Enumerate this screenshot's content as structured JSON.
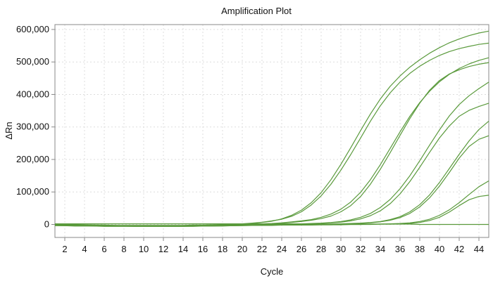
{
  "chart_data": {
    "type": "line",
    "title": "Amplification Plot",
    "xlabel": "Cycle",
    "ylabel": "ΔRn",
    "xlim": [
      1,
      45
    ],
    "ylim": [
      -40000,
      615000
    ],
    "x_ticks": [
      2,
      4,
      6,
      8,
      10,
      12,
      14,
      16,
      18,
      20,
      22,
      24,
      26,
      28,
      30,
      32,
      34,
      36,
      38,
      40,
      42,
      44
    ],
    "x_tick_labels": [
      "2",
      "4",
      "6",
      "8",
      "10",
      "12",
      "14",
      "16",
      "18",
      "20",
      "22",
      "24",
      "26",
      "28",
      "30",
      "32",
      "34",
      "36",
      "38",
      "40",
      "42",
      "44"
    ],
    "y_ticks": [
      0,
      100000,
      200000,
      300000,
      400000,
      500000,
      600000
    ],
    "y_tick_labels": [
      "0",
      "100,000",
      "200,000",
      "300,000",
      "400,000",
      "500,000",
      "600,000"
    ],
    "grid": true,
    "legend": "none",
    "line_color": "#5a9a3c",
    "grid_color": "#dddddd",
    "axis_color": "#888888",
    "x": [
      1,
      2,
      3,
      4,
      5,
      6,
      7,
      8,
      9,
      10,
      11,
      12,
      13,
      14,
      15,
      16,
      17,
      18,
      19,
      20,
      21,
      22,
      23,
      24,
      25,
      26,
      27,
      28,
      29,
      30,
      31,
      32,
      33,
      34,
      35,
      36,
      37,
      38,
      39,
      40,
      41,
      42,
      43,
      44,
      45
    ],
    "series": [
      {
        "values": [
          2000,
          1000,
          0,
          -1000,
          -2000,
          -3000,
          -3000,
          -4000,
          -4000,
          -4000,
          -4000,
          -4000,
          -4000,
          -4000,
          -3000,
          -3000,
          -2000,
          -1000,
          0,
          1000,
          3000,
          6000,
          10000,
          17000,
          28000,
          44000,
          67000,
          98000,
          138000,
          185000,
          236000,
          289000,
          340000,
          386000,
          425000,
          457000,
          484000,
          507000,
          527000,
          544000,
          559000,
          571000,
          581000,
          589000,
          595000
        ]
      },
      {
        "values": [
          1000,
          0,
          -1000,
          -1000,
          -2000,
          -2000,
          -3000,
          -3000,
          -3000,
          -3000,
          -3000,
          -3000,
          -3000,
          -3000,
          -2000,
          -2000,
          -1000,
          0,
          1000,
          2000,
          4000,
          7000,
          11000,
          16000,
          25000,
          39000,
          60000,
          88000,
          124000,
          167000,
          215000,
          266000,
          318000,
          365000,
          405000,
          438000,
          465000,
          487000,
          505000,
          520000,
          532000,
          541000,
          548000,
          554000,
          558000
        ]
      },
      {
        "values": [
          -1000,
          -2000,
          -2000,
          -3000,
          -3000,
          -3000,
          -4000,
          -4000,
          -4000,
          -4000,
          -4000,
          -4000,
          -4000,
          -4000,
          -4000,
          -3000,
          -3000,
          -2000,
          -1000,
          0,
          1000,
          2000,
          3000,
          5000,
          8000,
          11000,
          15000,
          22000,
          32000,
          47000,
          69000,
          99000,
          138000,
          184000,
          234000,
          285000,
          333000,
          375000,
          410000,
          439000,
          462000,
          480000,
          494000,
          505000,
          513000
        ]
      },
      {
        "values": [
          -2000,
          -3000,
          -3000,
          -4000,
          -4000,
          -4000,
          -5000,
          -5000,
          -5000,
          -5000,
          -5000,
          -5000,
          -5000,
          -5000,
          -5000,
          -4000,
          -4000,
          -3000,
          -2000,
          -1000,
          0,
          1000,
          2000,
          4000,
          6000,
          9000,
          13000,
          18000,
          26000,
          39000,
          58000,
          86000,
          124000,
          170000,
          221000,
          274000,
          326000,
          373000,
          413000,
          443000,
          463000,
          476000,
          486000,
          493000,
          498000
        ]
      },
      {
        "values": [
          -2000,
          -2000,
          -3000,
          -3000,
          -3000,
          -4000,
          -4000,
          -4000,
          -4000,
          -4000,
          -4000,
          -4000,
          -4000,
          -4000,
          -4000,
          -3000,
          -3000,
          -3000,
          -2000,
          -2000,
          -1000,
          -1000,
          0,
          0,
          1000,
          2000,
          3000,
          4000,
          6000,
          9000,
          14000,
          22000,
          34000,
          52000,
          77000,
          110000,
          150000,
          196000,
          244000,
          291000,
          334000,
          369000,
          396000,
          418000,
          438000
        ]
      },
      {
        "values": [
          -3000,
          -3000,
          -4000,
          -4000,
          -4000,
          -5000,
          -5000,
          -5000,
          -5000,
          -5000,
          -5000,
          -5000,
          -5000,
          -5000,
          -5000,
          -4000,
          -4000,
          -4000,
          -3000,
          -3000,
          -2000,
          -2000,
          -1000,
          -1000,
          0,
          1000,
          2000,
          3000,
          5000,
          7000,
          11000,
          17000,
          27000,
          42000,
          64000,
          94000,
          132000,
          176000,
          222000,
          266000,
          303000,
          333000,
          351000,
          363000,
          373000
        ]
      },
      {
        "values": [
          -3000,
          -4000,
          -4000,
          -4000,
          -5000,
          -5000,
          -5000,
          -5000,
          -6000,
          -6000,
          -6000,
          -6000,
          -6000,
          -6000,
          -5000,
          -5000,
          -5000,
          -4000,
          -4000,
          -3000,
          -3000,
          -2000,
          -2000,
          -1000,
          -1000,
          0,
          0,
          1000,
          1000,
          2000,
          3000,
          4000,
          6000,
          9000,
          15000,
          24000,
          39000,
          61000,
          91000,
          129000,
          172000,
          216000,
          257000,
          292000,
          318000
        ]
      },
      {
        "values": [
          -4000,
          -4000,
          -5000,
          -5000,
          -5000,
          -6000,
          -6000,
          -6000,
          -6000,
          -6000,
          -6000,
          -6000,
          -6000,
          -6000,
          -6000,
          -5000,
          -5000,
          -5000,
          -4000,
          -4000,
          -3000,
          -3000,
          -2000,
          -2000,
          -1000,
          -1000,
          0,
          0,
          1000,
          1000,
          2000,
          3000,
          5000,
          8000,
          13000,
          21000,
          34000,
          54000,
          82000,
          118000,
          160000,
          204000,
          240000,
          262000,
          273000
        ]
      },
      {
        "values": [
          -2000,
          -2000,
          -3000,
          -3000,
          -3000,
          -3000,
          -4000,
          -4000,
          -4000,
          -4000,
          -4000,
          -4000,
          -4000,
          -4000,
          -4000,
          -4000,
          -3000,
          -3000,
          -3000,
          -3000,
          -2000,
          -2000,
          -2000,
          -2000,
          -2000,
          -1000,
          -1000,
          -1000,
          -1000,
          0,
          0,
          0,
          1000,
          1000,
          2000,
          3000,
          5000,
          9000,
          16000,
          28000,
          45000,
          67000,
          92000,
          116000,
          134000
        ]
      },
      {
        "values": [
          -3000,
          -3000,
          -3000,
          -4000,
          -4000,
          -4000,
          -4000,
          -4000,
          -5000,
          -5000,
          -5000,
          -5000,
          -5000,
          -5000,
          -4000,
          -4000,
          -4000,
          -4000,
          -4000,
          -3000,
          -3000,
          -3000,
          -3000,
          -2000,
          -2000,
          -2000,
          -2000,
          -1000,
          -1000,
          -1000,
          0,
          0,
          0,
          1000,
          1000,
          2000,
          3000,
          6000,
          12000,
          22000,
          38000,
          58000,
          76000,
          86000,
          90000
        ]
      },
      {
        "values": [
          2000,
          2000,
          2000,
          2000,
          2000,
          2000,
          2000,
          2000,
          2000,
          2000,
          2000,
          2000,
          2000,
          2000,
          2000,
          2000,
          2000,
          2000,
          2000,
          2000,
          2000,
          2000,
          2000,
          2000,
          2000,
          2000,
          2000,
          1000,
          1000,
          1000,
          1000,
          1000,
          1000,
          1000,
          1000,
          1000,
          1000,
          0,
          0,
          0,
          0,
          0,
          0,
          0,
          0
        ]
      }
    ]
  }
}
